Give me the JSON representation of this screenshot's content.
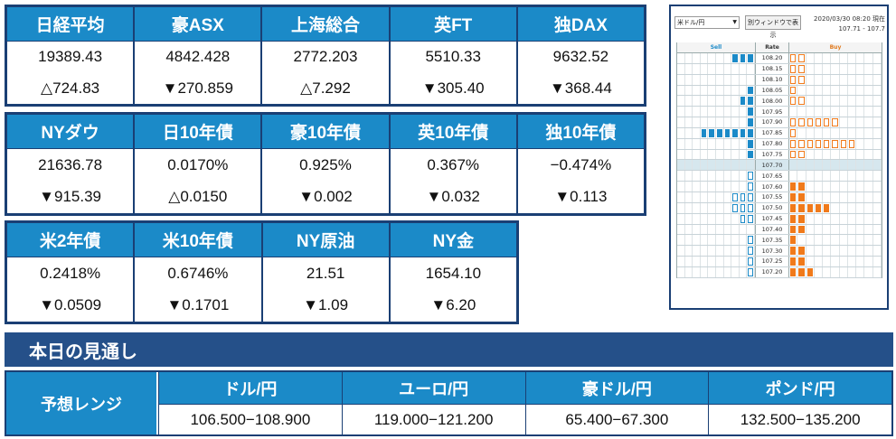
{
  "markets": {
    "row1": [
      {
        "name": "日経平均",
        "value": "19389.43",
        "change": "△724.83"
      },
      {
        "name": "豪ASX",
        "value": "4842.428",
        "change": "▼270.859"
      },
      {
        "name": "上海総合",
        "value": "2772.203",
        "change": "△7.292"
      },
      {
        "name": "英FT",
        "value": "5510.33",
        "change": "▼305.40"
      },
      {
        "name": "独DAX",
        "value": "9632.52",
        "change": "▼368.44"
      }
    ],
    "row2": [
      {
        "name": "NYダウ",
        "value": "21636.78",
        "change": "▼915.39"
      },
      {
        "name": "日10年債",
        "value": "0.0170%",
        "change": "△0.0150"
      },
      {
        "name": "豪10年債",
        "value": "0.925%",
        "change": "▼0.002"
      },
      {
        "name": "英10年債",
        "value": "0.367%",
        "change": "▼0.032"
      },
      {
        "name": "独10年債",
        "value": "−0.474%",
        "change": "▼0.113"
      }
    ],
    "row3": [
      {
        "name": "米2年債",
        "value": "0.2418%",
        "change": "▼0.0509"
      },
      {
        "name": "米10年債",
        "value": "0.6746%",
        "change": "▼0.1701"
      },
      {
        "name": "NY原油",
        "value": "21.51",
        "change": "▼1.09"
      },
      {
        "name": "NY金",
        "value": "1654.10",
        "change": "▼6.20"
      }
    ]
  },
  "orderbook": {
    "pair_select": "米ドル/円",
    "new_window_label": "別ウィンドウで表示",
    "timestamp": "2020/03/30 08:20 現在",
    "range": "107.71 - 107.7",
    "headers": {
      "sell": "Sell",
      "rate": "Rate",
      "buy": "Buy"
    },
    "sell_cols": 10,
    "buy_cols": 11,
    "rows": [
      {
        "rate": "108.20",
        "sell_full": 3,
        "sell_open": 0,
        "buy_full": 0,
        "buy_open": 2
      },
      {
        "rate": "108.15",
        "sell_full": 0,
        "sell_open": 0,
        "buy_full": 0,
        "buy_open": 2
      },
      {
        "rate": "108.10",
        "sell_full": 0,
        "sell_open": 0,
        "buy_full": 0,
        "buy_open": 2
      },
      {
        "rate": "108.05",
        "sell_full": 1,
        "sell_open": 0,
        "buy_full": 0,
        "buy_open": 1
      },
      {
        "rate": "108.00",
        "sell_full": 2,
        "sell_open": 0,
        "buy_full": 0,
        "buy_open": 2
      },
      {
        "rate": "107.95",
        "sell_full": 1,
        "sell_open": 0,
        "buy_full": 0,
        "buy_open": 0
      },
      {
        "rate": "107.90",
        "sell_full": 1,
        "sell_open": 0,
        "buy_full": 0,
        "buy_open": 6
      },
      {
        "rate": "107.85",
        "sell_full": 7,
        "sell_open": 0,
        "buy_full": 0,
        "buy_open": 1
      },
      {
        "rate": "107.80",
        "sell_full": 1,
        "sell_open": 0,
        "buy_full": 0,
        "buy_open": 8
      },
      {
        "rate": "107.75",
        "sell_full": 1,
        "sell_open": 0,
        "buy_full": 0,
        "buy_open": 2
      },
      {
        "rate": "107.70",
        "current": true,
        "sell_full": 0,
        "sell_open": 0,
        "buy_full": 0,
        "buy_open": 0
      },
      {
        "rate": "107.65",
        "sell_full": 0,
        "sell_open": 1,
        "buy_full": 0,
        "buy_open": 0
      },
      {
        "rate": "107.60",
        "sell_full": 0,
        "sell_open": 1,
        "buy_full": 2,
        "buy_open": 0
      },
      {
        "rate": "107.55",
        "sell_full": 0,
        "sell_open": 3,
        "buy_full": 2,
        "buy_open": 0
      },
      {
        "rate": "107.50",
        "sell_full": 0,
        "sell_open": 3,
        "buy_full": 5,
        "buy_open": 0
      },
      {
        "rate": "107.45",
        "sell_full": 0,
        "sell_open": 2,
        "buy_full": 2,
        "buy_open": 0
      },
      {
        "rate": "107.40",
        "sell_full": 0,
        "sell_open": 0,
        "buy_full": 2,
        "buy_open": 0
      },
      {
        "rate": "107.35",
        "sell_full": 0,
        "sell_open": 1,
        "buy_full": 1,
        "buy_open": 0
      },
      {
        "rate": "107.30",
        "sell_full": 0,
        "sell_open": 1,
        "buy_full": 2,
        "buy_open": 0
      },
      {
        "rate": "107.25",
        "sell_full": 0,
        "sell_open": 1,
        "buy_full": 2,
        "buy_open": 0
      },
      {
        "rate": "107.20",
        "sell_full": 0,
        "sell_open": 1,
        "buy_full": 3,
        "buy_open": 0
      }
    ],
    "colors": {
      "sell": "#1b8ac8",
      "buy": "#f07a1b"
    }
  },
  "outlook": {
    "title": "本日の見通し",
    "range_label": "予想レンジ",
    "pairs": [
      {
        "name": "ドル/円",
        "range": "106.500−108.900"
      },
      {
        "name": "ユーロ/円",
        "range": "119.000−121.200"
      },
      {
        "name": "豪ドル/円",
        "range": "65.400−67.300"
      },
      {
        "name": "ポンド/円",
        "range": "132.500−135.200"
      }
    ]
  },
  "colors": {
    "header_blue": "#1b8ac8",
    "border_navy": "#1a3f74",
    "bar_navy": "#255089"
  }
}
